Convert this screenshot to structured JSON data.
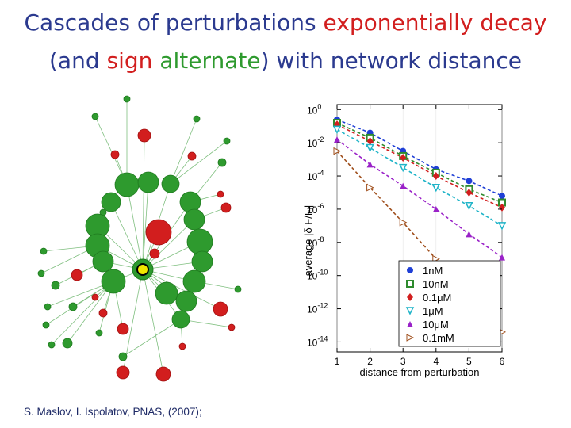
{
  "title": {
    "line1_a": "Cascades of perturbations ",
    "line1_b": "exponentially decay",
    "line2_a": "(and ",
    "line2_b": "sign",
    "line2_c": " ",
    "line2_d": "alternate",
    "line2_e": ") with network distance"
  },
  "citation": "S. Maslov, I. Ispolatov, PNAS, (2007);",
  "colors": {
    "increase": "#2e9a2e",
    "decrease": "#d21e1e",
    "source": "#f2e600"
  },
  "chart_data": {
    "type": "scatter",
    "xlabel": "distance from perturbation",
    "ylabel": "average |δ F/Fᵢ|",
    "x_ticks": [
      1,
      2,
      3,
      4,
      5,
      6
    ],
    "y_tick_exponents": [
      0,
      -2,
      -4,
      -6,
      -8,
      -10,
      -12,
      -14
    ],
    "y_tick_base": "10",
    "yscale": "log",
    "xlim": [
      1,
      6
    ],
    "ylim_log10": [
      -14.6,
      0.3
    ],
    "legend_position": "lower-right",
    "series": [
      {
        "name": "1nM",
        "color": "#1f3fd6",
        "marker": "circle",
        "x": [
          1,
          2,
          3,
          4,
          5,
          6
        ],
        "log10_y": [
          -0.6,
          -1.4,
          -2.5,
          -3.6,
          -4.3,
          -5.2
        ]
      },
      {
        "name": "10nM",
        "color": "#2e8b2e",
        "marker": "square",
        "x": [
          1,
          2,
          3,
          4,
          5,
          6
        ],
        "log10_y": [
          -0.8,
          -1.7,
          -2.8,
          -3.8,
          -4.8,
          -5.6
        ]
      },
      {
        "name": "0.1μM",
        "color": "#d21e1e",
        "marker": "diamond",
        "x": [
          1,
          2,
          3,
          4,
          5,
          6
        ],
        "log10_y": [
          -0.9,
          -1.9,
          -2.9,
          -4.0,
          -5.0,
          -5.9
        ]
      },
      {
        "name": "1μM",
        "color": "#1fb4c8",
        "marker": "triangle-down",
        "x": [
          1,
          2,
          3,
          4,
          5,
          6
        ],
        "log10_y": [
          -1.2,
          -2.3,
          -3.5,
          -4.7,
          -5.8,
          -7.0
        ]
      },
      {
        "name": "10μM",
        "color": "#9a22c8",
        "marker": "triangle-up",
        "x": [
          1,
          2,
          3,
          4,
          5,
          6
        ],
        "log10_y": [
          -1.8,
          -3.3,
          -4.6,
          -6.0,
          -7.5,
          -8.9
        ]
      },
      {
        "name": "0.1mM",
        "color": "#a0501e",
        "marker": "triangle-right",
        "x": [
          1,
          2,
          3,
          4,
          5,
          6
        ],
        "log10_y": [
          -2.5,
          -4.7,
          -6.8,
          -9.0,
          -11.2,
          -13.4
        ]
      }
    ]
  }
}
